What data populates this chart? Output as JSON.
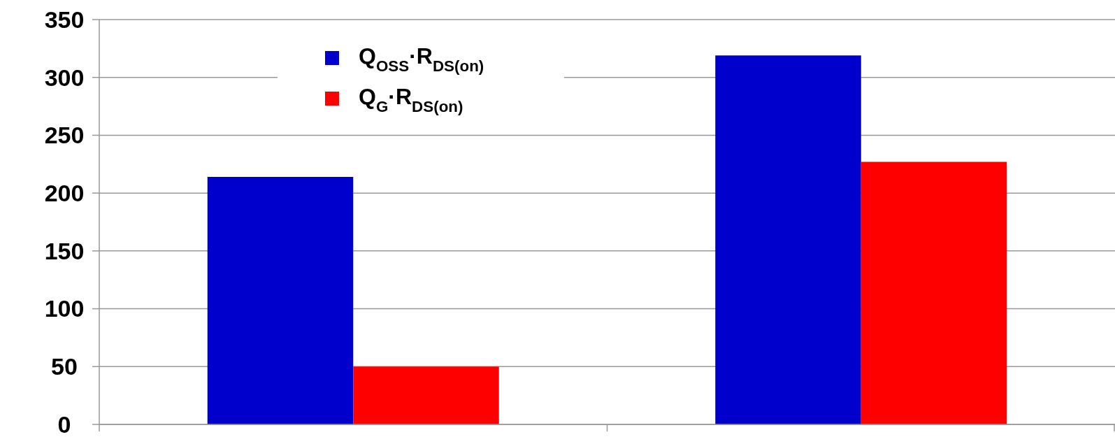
{
  "chart_data": {
    "type": "bar",
    "categories": [
      null,
      null
    ],
    "series": [
      {
        "name": "Q$_{OSS}$·R$_{DS(on)}$",
        "color": "#0000cc",
        "values": [
          214,
          319
        ]
      },
      {
        "name": "Q$_{G}$·R$_{DS(on)}$",
        "color": "#ff0000",
        "values": [
          50,
          227
        ]
      }
    ],
    "ylim": [
      0,
      350
    ],
    "yticks": [
      0,
      50,
      100,
      150,
      200,
      250,
      300,
      350
    ],
    "grid": "y",
    "legend": "top left"
  }
}
